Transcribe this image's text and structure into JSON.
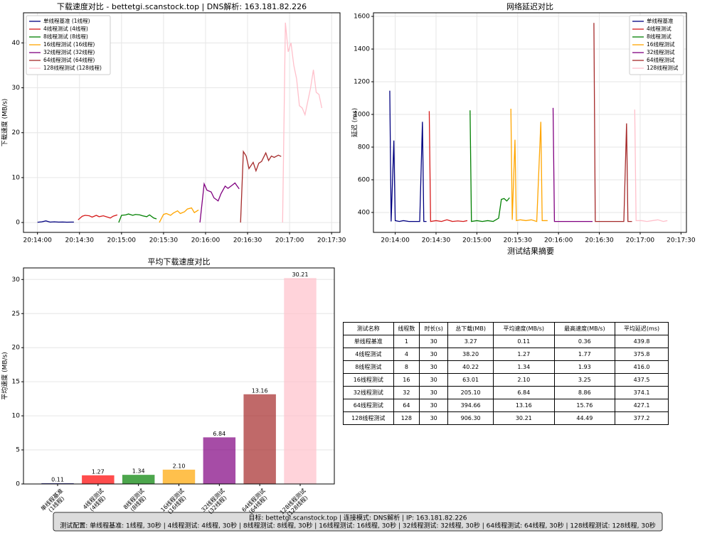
{
  "chart_data": [
    {
      "type": "line",
      "title": "下载速度对比 - bettetgi.scanstock.top | DNS解析: 163.181.82.226",
      "ylabel": "下载速度 (MB/s)",
      "xlim": [
        "20:13:50",
        "20:17:36"
      ],
      "xticks": [
        "20:14:00",
        "20:14:30",
        "20:15:00",
        "20:15:30",
        "20:16:00",
        "20:16:30",
        "20:17:00",
        "20:17:30"
      ],
      "ylim": [
        -2.2,
        46.7
      ],
      "yticks": [
        0,
        10,
        20,
        30,
        40
      ],
      "grid": true,
      "legend": "upper left",
      "series": [
        {
          "name": "单线程基准 (1线程)",
          "color": "navy",
          "x": [
            "20:14:00",
            "20:14:03",
            "20:14:06",
            "20:14:09",
            "20:14:12",
            "20:14:15",
            "20:14:18",
            "20:14:21",
            "20:14:24",
            "20:14:26"
          ],
          "values": [
            0.05,
            0.15,
            0.36,
            0.1,
            0.15,
            0.1,
            0.12,
            0.08,
            0.1,
            0.1
          ]
        },
        {
          "name": "4线程测试 (4线程)",
          "color": "#d61a1a",
          "x": [
            "20:14:29",
            "20:14:32",
            "20:14:34",
            "20:14:37",
            "20:14:39",
            "20:14:42",
            "20:14:44",
            "20:14:47",
            "20:14:49",
            "20:14:52",
            "20:14:54",
            "20:14:57"
          ],
          "values": [
            0.6,
            1.4,
            1.6,
            1.5,
            1.2,
            1.6,
            1.3,
            1.5,
            1.3,
            1.0,
            1.4,
            1.7
          ]
        },
        {
          "name": "8线程测试 (8线程)",
          "color": "green",
          "x": [
            "20:14:58",
            "20:15:00",
            "20:15:03",
            "20:15:05",
            "20:15:08",
            "20:15:10",
            "20:15:13",
            "20:15:15",
            "20:15:18",
            "20:15:20",
            "20:15:23",
            "20:15:25"
          ],
          "values": [
            0,
            1.6,
            1.7,
            1.9,
            1.6,
            1.8,
            1.7,
            1.5,
            1.3,
            1.7,
            1.0,
            0.8
          ]
        },
        {
          "name": "16线程测试 (16线程)",
          "color": "orange",
          "x": [
            "20:15:27",
            "20:15:30",
            "20:15:32",
            "20:15:35",
            "20:15:37",
            "20:15:40",
            "20:15:42",
            "20:15:45",
            "20:15:47",
            "20:15:50",
            "20:15:52",
            "20:15:55"
          ],
          "values": [
            0,
            1.8,
            2.0,
            1.6,
            2.1,
            2.6,
            2.0,
            2.4,
            3.0,
            3.25,
            2.2,
            2.8
          ]
        },
        {
          "name": "32线程测试 (32线程)",
          "color": "purple",
          "x": [
            "20:15:56",
            "20:15:59",
            "20:16:01",
            "20:16:04",
            "20:16:06",
            "20:16:09",
            "20:16:11",
            "20:16:14",
            "20:16:16",
            "20:16:19",
            "20:16:21",
            "20:16:24"
          ],
          "values": [
            0,
            8.6,
            7.2,
            6.8,
            5.5,
            4.8,
            6.4,
            8.1,
            7.6,
            8.3,
            8.8,
            7.5
          ]
        },
        {
          "name": "64线程测试 (64线程)",
          "color": "brown",
          "x": [
            "20:16:25",
            "20:16:27",
            "20:16:29",
            "20:16:31",
            "20:16:34",
            "20:16:36",
            "20:16:38",
            "20:16:40",
            "20:16:43",
            "20:16:45",
            "20:16:47",
            "20:16:49",
            "20:16:52",
            "20:16:54"
          ],
          "values": [
            0,
            15.8,
            14.8,
            12.0,
            13.4,
            11.5,
            13.2,
            13.6,
            15.5,
            13.8,
            14.8,
            14.5,
            15.0,
            14.7
          ]
        },
        {
          "name": "128线程测试 (128线程)",
          "color": "pink",
          "x": [
            "20:16:55",
            "20:16:57",
            "20:16:59",
            "20:17:01",
            "20:17:03",
            "20:17:05",
            "20:17:07",
            "20:17:09",
            "20:17:11",
            "20:17:13",
            "20:17:15",
            "20:17:17",
            "20:17:19",
            "20:17:21",
            "20:17:23"
          ],
          "values": [
            0,
            44.5,
            38,
            40,
            35,
            32,
            26,
            25.5,
            24,
            27,
            30,
            34,
            29,
            28.5,
            25.5
          ]
        }
      ]
    },
    {
      "type": "line",
      "title": "网络延迟对比",
      "ylabel": "延迟 (ms)",
      "xlim": [
        "20:13:44",
        "20:17:34"
      ],
      "xticks": [
        "20:14:00",
        "20:14:30",
        "20:15:00",
        "20:15:30",
        "20:16:00",
        "20:16:30",
        "20:17:00",
        "20:17:30"
      ],
      "ylim": [
        278,
        1622
      ],
      "yticks": [
        400,
        600,
        800,
        1000,
        1200,
        1400,
        1600
      ],
      "grid": true,
      "legend": "upper right",
      "series": [
        {
          "name": "单线程基准",
          "color": "navy",
          "x": [
            "20:13:56",
            "20:13:57",
            "20:13:59",
            "20:14:00",
            "20:14:03",
            "20:14:06",
            "20:14:10",
            "20:14:14",
            "20:14:18",
            "20:14:20",
            "20:14:21",
            "20:14:23"
          ],
          "values": [
            1145,
            345,
            840,
            350,
            345,
            350,
            345,
            345,
            345,
            955,
            345,
            345
          ]
        },
        {
          "name": "4线程测试",
          "color": "#d61a1a",
          "x": [
            "20:14:25",
            "20:14:26",
            "20:14:30",
            "20:14:34",
            "20:14:38",
            "20:14:42",
            "20:14:46",
            "20:14:50",
            "20:14:53"
          ],
          "values": [
            1020,
            345,
            350,
            345,
            355,
            345,
            348,
            345,
            350
          ]
        },
        {
          "name": "8线程测试",
          "color": "green",
          "x": [
            "20:14:55",
            "20:14:56",
            "20:15:00",
            "20:15:04",
            "20:15:08",
            "20:15:12",
            "20:15:16",
            "20:15:18",
            "20:15:20",
            "20:15:22",
            "20:15:24"
          ],
          "values": [
            1025,
            345,
            350,
            345,
            350,
            345,
            365,
            480,
            485,
            470,
            490
          ]
        },
        {
          "name": "16线程测试",
          "color": "orange",
          "x": [
            "20:15:25",
            "20:15:26",
            "20:15:28",
            "20:15:29",
            "20:15:32",
            "20:15:36",
            "20:15:40",
            "20:15:44",
            "20:15:47",
            "20:15:48",
            "20:15:52"
          ],
          "values": [
            1035,
            355,
            845,
            350,
            355,
            350,
            355,
            345,
            955,
            350,
            350
          ]
        },
        {
          "name": "32线程测试",
          "color": "purple",
          "x": [
            "20:15:56",
            "20:15:57",
            "20:16:01",
            "20:16:06",
            "20:16:11",
            "20:16:16",
            "20:16:21",
            "20:16:25"
          ],
          "values": [
            1040,
            345,
            345,
            345,
            345,
            345,
            345,
            345
          ]
        },
        {
          "name": "64线程测试",
          "color": "brown",
          "x": [
            "20:16:26",
            "20:16:27",
            "20:16:32",
            "20:16:38",
            "20:16:44",
            "20:16:48",
            "20:16:50",
            "20:16:51",
            "20:16:54"
          ],
          "values": [
            1560,
            345,
            345,
            345,
            345,
            345,
            945,
            345,
            345
          ]
        },
        {
          "name": "128线程测试",
          "color": "pink",
          "x": [
            "20:16:56",
            "20:16:57",
            "20:17:01",
            "20:17:05",
            "20:17:09",
            "20:17:13",
            "20:17:17",
            "20:17:20"
          ],
          "values": [
            1030,
            350,
            350,
            345,
            350,
            355,
            345,
            350
          ]
        }
      ]
    },
    {
      "type": "bar",
      "title": "平均下载速度对比",
      "ylabel": "平均速度 (MB/s)",
      "categories": [
        "单线程基准\n(1线程)",
        "4线程测试\n(4线程)",
        "8线程测试\n(8线程)",
        "16线程测试\n(16线程)",
        "32线程测试\n(32线程)",
        "64线程测试\n(64线程)",
        "128线程测试\n(128线程)"
      ],
      "values": [
        0.11,
        1.27,
        1.34,
        2.1,
        6.84,
        13.16,
        30.21
      ],
      "value_labels": [
        "0.11",
        "1.27",
        "1.34",
        "2.10",
        "6.84",
        "13.16",
        "30.21"
      ],
      "colors": [
        "navy",
        "red",
        "green",
        "orange",
        "purple",
        "brown",
        "pink"
      ],
      "alpha": 0.7,
      "ylim": [
        0,
        31.7
      ],
      "yticks": [
        0,
        5,
        10,
        15,
        20,
        25,
        30
      ],
      "grid": true
    }
  ],
  "table": {
    "title": "测试结果摘要",
    "columns": [
      "测试名称",
      "线程数",
      "时长(s)",
      "总下载(MB)",
      "平均速度(MB/s)",
      "最高速度(MB/s)",
      "平均延迟(ms)"
    ],
    "rows": [
      [
        "单线程基准",
        "1",
        "30",
        "3.27",
        "0.11",
        "0.36",
        "439.8"
      ],
      [
        "4线程测试",
        "4",
        "30",
        "38.20",
        "1.27",
        "1.77",
        "375.8"
      ],
      [
        "8线程测试",
        "8",
        "30",
        "40.22",
        "1.34",
        "1.93",
        "416.0"
      ],
      [
        "16线程测试",
        "16",
        "30",
        "63.01",
        "2.10",
        "3.25",
        "437.5"
      ],
      [
        "32线程测试",
        "32",
        "30",
        "205.10",
        "6.84",
        "8.86",
        "374.1"
      ],
      [
        "64线程测试",
        "64",
        "30",
        "394.66",
        "13.16",
        "15.76",
        "427.1"
      ],
      [
        "128线程测试",
        "128",
        "30",
        "906.30",
        "30.21",
        "44.49",
        "377.2"
      ]
    ]
  },
  "footer": [
    "目标: bettetgi.scanstock.top | 连接模式: DNS解析 | IP: 163.181.82.226",
    "测试配置: 单线程基准: 1线程, 30秒 | 4线程测试: 4线程, 30秒 | 8线程测试: 8线程, 30秒 | 16线程测试: 16线程, 30秒 | 32线程测试: 32线程, 30秒 | 64线程测试: 64线程, 30秒 | 128线程测试: 128线程, 30秒"
  ]
}
